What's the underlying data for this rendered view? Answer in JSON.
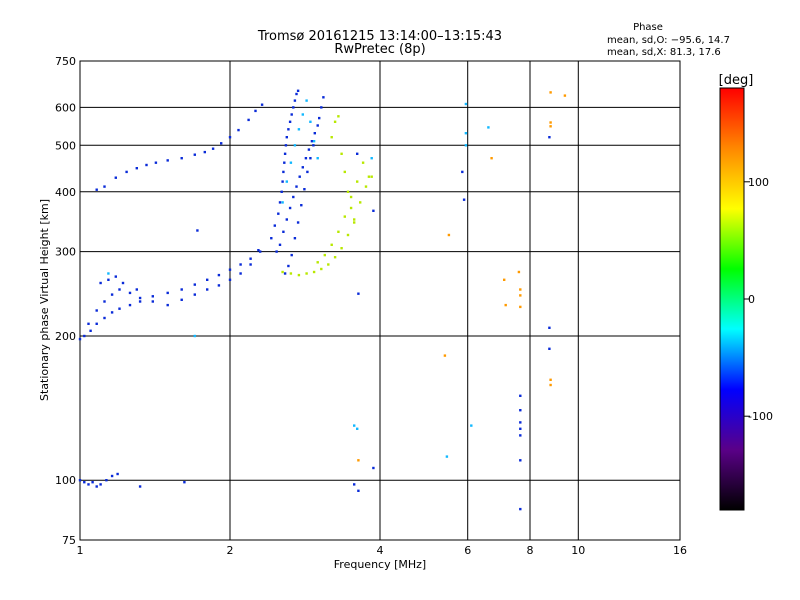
{
  "chart_data": {
    "type": "scatter",
    "title": "Tromsø 20161215 13:14:00–13:15:43",
    "subtitle": "RwPretec (8p)",
    "xlabel": "Frequency [MHz]",
    "ylabel": "Stationary phase Virtual Height [km]",
    "x_scale": "log2",
    "y_scale": "log",
    "xlim": [
      1,
      16
    ],
    "ylim": [
      75,
      750
    ],
    "x_ticks": [
      1,
      2,
      4,
      6,
      8,
      10,
      16
    ],
    "y_ticks": [
      75,
      100,
      200,
      300,
      400,
      500,
      600,
      750
    ],
    "grid": true,
    "stats": {
      "heading": "Phase",
      "line_o": "mean, sd,O: −95.6, 14.7",
      "line_x": "mean, sd,X:  81.3, 17.6"
    },
    "colorbar": {
      "label": "[deg]",
      "range": [
        -180,
        180
      ],
      "ticks": [
        100,
        0,
        -100
      ],
      "colors": [
        "#000000",
        "#5a0088",
        "#0000ff",
        "#00ffff",
        "#00ff00",
        "#ffff00",
        "#ff8800",
        "#ff0000"
      ]
    },
    "series": [
      {
        "color_group": "blue",
        "color": "#0a2bd8",
        "points": [
          [
            1.08,
            404
          ],
          [
            1.12,
            410
          ],
          [
            1.18,
            428
          ],
          [
            1.24,
            440
          ],
          [
            1.3,
            448
          ],
          [
            1.36,
            455
          ],
          [
            1.42,
            460
          ],
          [
            1.5,
            465
          ],
          [
            1.6,
            470
          ],
          [
            1.7,
            478
          ],
          [
            1.78,
            484
          ],
          [
            1.85,
            492
          ],
          [
            1.92,
            505
          ],
          [
            2.0,
            520
          ],
          [
            2.08,
            538
          ],
          [
            2.18,
            565
          ],
          [
            2.25,
            590
          ],
          [
            2.32,
            608
          ],
          [
            1.0,
            197
          ],
          [
            1.02,
            200
          ],
          [
            1.05,
            205
          ],
          [
            1.08,
            212
          ],
          [
            1.12,
            218
          ],
          [
            1.16,
            224
          ],
          [
            1.2,
            228
          ],
          [
            1.26,
            232
          ],
          [
            1.32,
            236
          ],
          [
            1.4,
            242
          ],
          [
            1.5,
            246
          ],
          [
            1.6,
            250
          ],
          [
            1.7,
            256
          ],
          [
            1.8,
            262
          ],
          [
            1.9,
            268
          ],
          [
            2.0,
            275
          ],
          [
            2.1,
            282
          ],
          [
            2.2,
            290
          ],
          [
            2.28,
            302
          ],
          [
            1.04,
            212
          ],
          [
            1.08,
            226
          ],
          [
            1.12,
            236
          ],
          [
            1.16,
            244
          ],
          [
            1.2,
            250
          ],
          [
            1.26,
            246
          ],
          [
            1.32,
            240
          ],
          [
            1.4,
            236
          ],
          [
            1.5,
            232
          ],
          [
            1.6,
            238
          ],
          [
            1.7,
            244
          ],
          [
            1.8,
            250
          ],
          [
            1.9,
            255
          ],
          [
            2.0,
            262
          ],
          [
            2.1,
            270
          ],
          [
            2.2,
            282
          ],
          [
            1.1,
            258
          ],
          [
            1.14,
            262
          ],
          [
            1.18,
            266
          ],
          [
            1.22,
            258
          ],
          [
            1.3,
            250
          ],
          [
            1.0,
            100
          ],
          [
            1.02,
            99
          ],
          [
            1.04,
            98
          ],
          [
            1.06,
            99
          ],
          [
            1.08,
            97
          ],
          [
            1.1,
            98
          ],
          [
            1.13,
            100
          ],
          [
            1.16,
            102
          ],
          [
            1.19,
            103
          ],
          [
            1.32,
            97
          ],
          [
            1.62,
            99
          ],
          [
            1.72,
            332
          ],
          [
            2.3,
            300
          ],
          [
            2.42,
            320
          ],
          [
            2.46,
            340
          ],
          [
            2.5,
            360
          ],
          [
            2.52,
            380
          ],
          [
            2.54,
            400
          ],
          [
            2.55,
            420
          ],
          [
            2.56,
            440
          ],
          [
            2.57,
            460
          ],
          [
            2.58,
            480
          ],
          [
            2.59,
            500
          ],
          [
            2.6,
            520
          ],
          [
            2.62,
            540
          ],
          [
            2.64,
            560
          ],
          [
            2.66,
            580
          ],
          [
            2.68,
            600
          ],
          [
            2.7,
            620
          ],
          [
            2.72,
            640
          ],
          [
            2.74,
            650
          ],
          [
            2.48,
            300
          ],
          [
            2.52,
            310
          ],
          [
            2.56,
            330
          ],
          [
            2.6,
            350
          ],
          [
            2.64,
            370
          ],
          [
            2.68,
            390
          ],
          [
            2.72,
            410
          ],
          [
            2.76,
            430
          ],
          [
            2.8,
            450
          ],
          [
            2.84,
            470
          ],
          [
            2.88,
            490
          ],
          [
            2.92,
            510
          ],
          [
            2.96,
            530
          ],
          [
            3.0,
            550
          ],
          [
            3.02,
            570
          ],
          [
            3.05,
            600
          ],
          [
            3.08,
            630
          ],
          [
            2.58,
            270
          ],
          [
            2.62,
            280
          ],
          [
            2.66,
            295
          ],
          [
            2.7,
            320
          ],
          [
            2.74,
            345
          ],
          [
            2.78,
            375
          ],
          [
            2.82,
            405
          ],
          [
            2.86,
            440
          ],
          [
            2.9,
            470
          ],
          [
            2.94,
            500
          ],
          [
            3.55,
            98
          ],
          [
            3.62,
            95
          ],
          [
            3.88,
            106
          ],
          [
            3.88,
            365
          ],
          [
            3.6,
            480
          ],
          [
            3.62,
            245
          ],
          [
            5.85,
            440
          ],
          [
            5.9,
            385
          ],
          [
            8.75,
            208
          ],
          [
            8.75,
            188
          ],
          [
            7.65,
            150
          ],
          [
            7.65,
            140
          ],
          [
            7.65,
            132
          ],
          [
            7.65,
            128
          ],
          [
            7.65,
            124
          ],
          [
            7.65,
            110
          ],
          [
            7.65,
            87
          ],
          [
            8.75,
            520
          ]
        ]
      },
      {
        "color_group": "cyan",
        "color": "#12b8ff",
        "points": [
          [
            2.55,
            380
          ],
          [
            2.6,
            420
          ],
          [
            2.65,
            460
          ],
          [
            2.7,
            500
          ],
          [
            2.75,
            540
          ],
          [
            2.8,
            580
          ],
          [
            2.85,
            620
          ],
          [
            2.9,
            560
          ],
          [
            2.95,
            510
          ],
          [
            3.0,
            470
          ],
          [
            1.14,
            270
          ],
          [
            1.7,
            200
          ],
          [
            3.55,
            130
          ],
          [
            3.6,
            128
          ],
          [
            3.85,
            470
          ],
          [
            5.95,
            610
          ],
          [
            5.95,
            530
          ],
          [
            5.95,
            500
          ],
          [
            6.1,
            130
          ],
          [
            6.6,
            545
          ],
          [
            5.45,
            112
          ]
        ]
      },
      {
        "color_group": "yellow-green",
        "color": "#b8e800",
        "points": [
          [
            2.55,
            272
          ],
          [
            2.65,
            270
          ],
          [
            2.75,
            268
          ],
          [
            2.85,
            270
          ],
          [
            2.95,
            272
          ],
          [
            3.05,
            276
          ],
          [
            3.15,
            282
          ],
          [
            3.25,
            292
          ],
          [
            3.35,
            305
          ],
          [
            3.45,
            325
          ],
          [
            3.55,
            350
          ],
          [
            3.65,
            380
          ],
          [
            3.75,
            410
          ],
          [
            3.85,
            430
          ],
          [
            3.0,
            285
          ],
          [
            3.1,
            295
          ],
          [
            3.2,
            310
          ],
          [
            3.3,
            330
          ],
          [
            3.4,
            355
          ],
          [
            3.5,
            390
          ],
          [
            3.6,
            420
          ],
          [
            3.7,
            460
          ],
          [
            3.8,
            430
          ],
          [
            3.2,
            520
          ],
          [
            3.25,
            560
          ],
          [
            3.3,
            575
          ],
          [
            3.35,
            480
          ],
          [
            3.4,
            440
          ],
          [
            3.45,
            400
          ],
          [
            3.5,
            370
          ],
          [
            3.55,
            345
          ]
        ]
      },
      {
        "color_group": "orange",
        "color": "#ff9a00",
        "points": [
          [
            5.4,
            182
          ],
          [
            5.5,
            325
          ],
          [
            6.7,
            470
          ],
          [
            7.1,
            262
          ],
          [
            7.15,
            232
          ],
          [
            7.6,
            272
          ],
          [
            7.65,
            250
          ],
          [
            7.65,
            243
          ],
          [
            7.65,
            230
          ],
          [
            8.8,
            645
          ],
          [
            8.8,
            558
          ],
          [
            8.8,
            548
          ],
          [
            9.4,
            635
          ],
          [
            8.8,
            162
          ],
          [
            8.8,
            158
          ],
          [
            3.62,
            110
          ]
        ]
      }
    ]
  }
}
